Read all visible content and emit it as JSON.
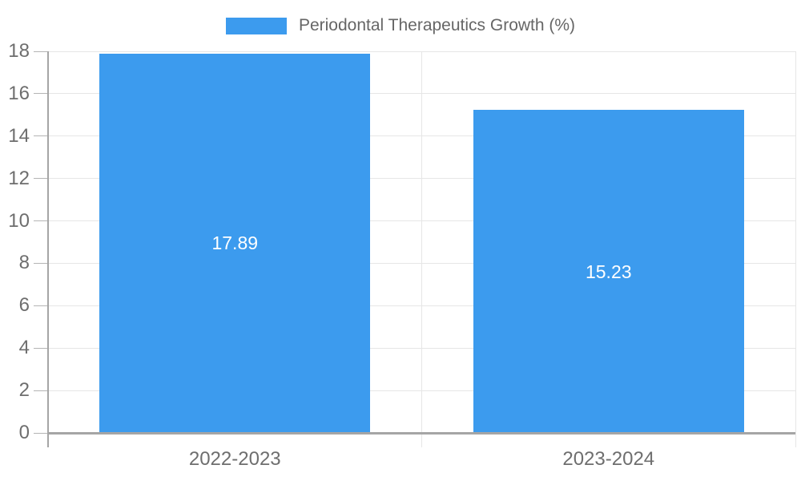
{
  "chart_data": {
    "type": "bar",
    "title": "Periodontal Therapeutics Growth (%)",
    "categories": [
      "2022-2023",
      "2023-2024"
    ],
    "series": [
      {
        "name": "Periodontal Therapeutics Growth (%)",
        "values": [
          17.89,
          15.23
        ]
      }
    ],
    "value_labels": [
      "17.89",
      "15.23"
    ],
    "xlabel": "",
    "ylabel": "",
    "ylim": [
      0,
      18
    ],
    "yticks": [
      0,
      2,
      4,
      6,
      8,
      10,
      12,
      14,
      16,
      18
    ],
    "grid": true,
    "legend_position": "top",
    "colors": {
      "bar": "#3c9bee",
      "grid_line": "#e6e6e6",
      "axis_line": "#a5a5a5",
      "tick_line": "#b4b4b4",
      "tick_text": "#6e6e6e",
      "legend_text": "#666666",
      "value_label_text": "#ffffff",
      "background": "#ffffff"
    }
  }
}
